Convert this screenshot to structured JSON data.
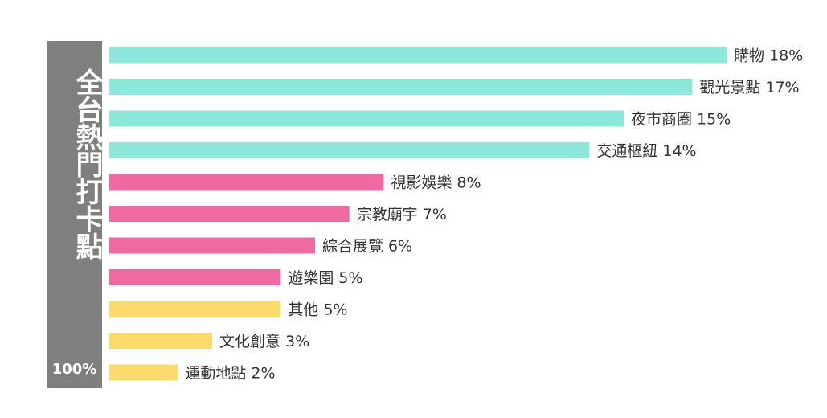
{
  "chart_data": {
    "type": "bar",
    "orientation": "horizontal",
    "title": "全台熱門打卡點",
    "total_label": "100%",
    "categories": [
      "購物",
      "觀光景點",
      "夜市商圈",
      "交通樞紐",
      "視影娛樂",
      "宗教廟宇",
      "綜合展覽",
      "遊樂園",
      "其他",
      "文化創意",
      "運動地點"
    ],
    "values": [
      18,
      17,
      15,
      14,
      8,
      7,
      6,
      5,
      5,
      3,
      2
    ],
    "value_suffix": "%",
    "bar_colors": [
      "#8de8dc",
      "#8de8dc",
      "#8de8dc",
      "#8de8dc",
      "#ee6aa0",
      "#ee6aa0",
      "#ee6aa0",
      "#ee6aa0",
      "#fddb6a",
      "#fddb6a",
      "#fddb6a"
    ],
    "total_column_color": "#7f7f7f",
    "label_color": "#333333",
    "grid": false,
    "legend": false
  }
}
